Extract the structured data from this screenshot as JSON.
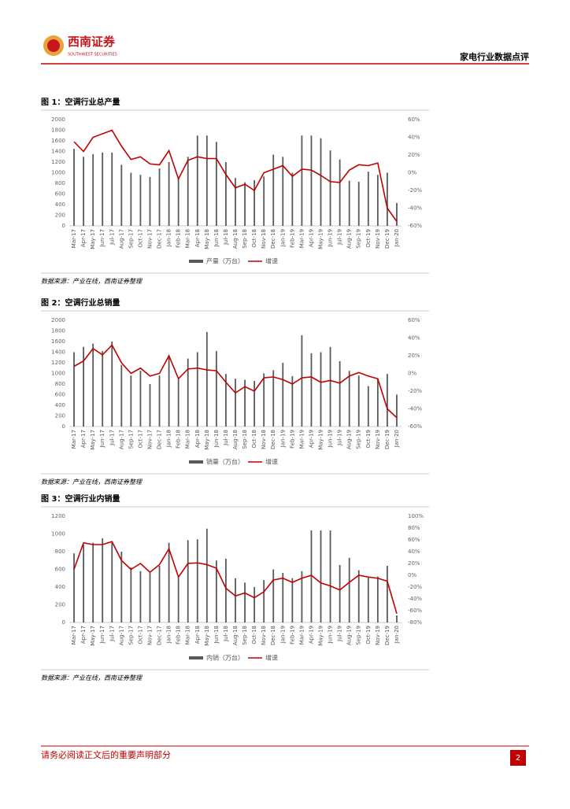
{
  "header": {
    "company": "西南证券",
    "company_en": "SOUTHWEST SECURITIES",
    "report_type": "家电行业数据点评"
  },
  "chart_data": [
    {
      "type": "combo",
      "title": "图 1：空调行业总产量",
      "categories": [
        "Mar-17",
        "Apr-17",
        "May-17",
        "Jun-17",
        "Jul-17",
        "Aug-17",
        "Sep-17",
        "Oct-17",
        "Nov-17",
        "Dec-17",
        "Jan-18",
        "Feb-18",
        "Mar-18",
        "Apr-18",
        "May-18",
        "Jun-18",
        "Jul-18",
        "Aug-18",
        "Sep-18",
        "Oct-18",
        "Nov-18",
        "Dec-18",
        "Jan-19",
        "Feb-19",
        "Mar-19",
        "Apr-19",
        "May-19",
        "Jun-19",
        "Jul-19",
        "Aug-19",
        "Sep-19",
        "Oct-19",
        "Nov-19",
        "Dec-19",
        "Jan-20"
      ],
      "series": [
        {
          "name": "产量（万台）",
          "type": "bar",
          "color": "#595959",
          "values": [
            1450,
            1300,
            1350,
            1380,
            1380,
            1150,
            1000,
            960,
            920,
            1080,
            1200,
            900,
            1300,
            1700,
            1700,
            1580,
            1200,
            900,
            820,
            860,
            930,
            1340,
            1300,
            1000,
            1700,
            1700,
            1650,
            1420,
            1250,
            850,
            830,
            1020,
            960,
            1000,
            430
          ]
        },
        {
          "name": "增速",
          "type": "line",
          "axis": "y2",
          "color": "#c00000",
          "values": [
            35,
            24,
            40,
            44,
            48,
            30,
            15,
            18,
            10,
            9,
            25,
            -7,
            14,
            18,
            16,
            16,
            -2,
            -17,
            -13,
            -20,
            0,
            4,
            8,
            -4,
            4,
            3,
            -3,
            -10,
            -11,
            3,
            9,
            8,
            11,
            -40,
            -55
          ]
        }
      ],
      "ylim": [
        0,
        2000
      ],
      "yticks": [
        0,
        200,
        400,
        600,
        800,
        1000,
        1200,
        1400,
        1600,
        1800,
        2000
      ],
      "y2lim": [
        -60,
        60
      ],
      "y2ticks": [
        {
          "value": -60,
          "label": "-60%"
        },
        {
          "value": -40,
          "label": "-40%"
        },
        {
          "value": -20,
          "label": "-20%"
        },
        {
          "value": 0,
          "label": "0%"
        },
        {
          "value": 20,
          "label": "20%"
        },
        {
          "value": 40,
          "label": "40%"
        },
        {
          "value": 60,
          "label": "60%"
        }
      ],
      "legend": "bottom"
    },
    {
      "type": "combo",
      "title": "图 2：空调行业总销量",
      "categories": [
        "Mar-17",
        "Apr-17",
        "May-17",
        "Jun-17",
        "Jul-17",
        "Aug-17",
        "Sep-17",
        "Oct-17",
        "Nov-17",
        "Dec-17",
        "Jan-18",
        "Feb-18",
        "Mar-18",
        "Apr-18",
        "May-18",
        "Jun-18",
        "Jul-18",
        "Aug-18",
        "Sep-18",
        "Oct-18",
        "Nov-18",
        "Dec-18",
        "Jan-19",
        "Feb-19",
        "Mar-19",
        "Apr-19",
        "May-19",
        "Jun-19",
        "Jul-19",
        "Aug-19",
        "Sep-19",
        "Oct-19",
        "Nov-19",
        "Dec-19",
        "Jan-20"
      ],
      "series": [
        {
          "name": "销量（万台）",
          "type": "bar",
          "color": "#595959",
          "values": [
            1400,
            1500,
            1560,
            1420,
            1600,
            1160,
            960,
            1050,
            800,
            960,
            1300,
            900,
            1280,
            1400,
            1780,
            1420,
            990,
            900,
            880,
            860,
            1000,
            1060,
            1200,
            950,
            1720,
            1380,
            1400,
            1500,
            1230,
            1050,
            960,
            760,
            900,
            990,
            600
          ]
        },
        {
          "name": "增速",
          "type": "line",
          "axis": "y2",
          "color": "#c00000",
          "values": [
            8,
            14,
            28,
            21,
            32,
            12,
            0,
            6,
            -3,
            0,
            20,
            -6,
            5,
            6,
            4,
            3,
            -10,
            -22,
            -15,
            -20,
            -5,
            -4,
            -7,
            -12,
            -5,
            -4,
            -10,
            -8,
            -11,
            -3,
            1,
            -3,
            -6,
            -40,
            -50
          ]
        }
      ],
      "ylim": [
        0,
        2000
      ],
      "yticks": [
        0,
        200,
        400,
        600,
        800,
        1000,
        1200,
        1400,
        1600,
        1800,
        2000
      ],
      "y2lim": [
        -60,
        60
      ],
      "y2ticks": [
        {
          "value": -60,
          "label": "-60%"
        },
        {
          "value": -40,
          "label": "-40%"
        },
        {
          "value": -20,
          "label": "-20%"
        },
        {
          "value": 0,
          "label": "0%"
        },
        {
          "value": 20,
          "label": "20%"
        },
        {
          "value": 40,
          "label": "40%"
        },
        {
          "value": 60,
          "label": "60%"
        }
      ],
      "legend": "bottom"
    },
    {
      "type": "combo",
      "title": "图 3：空调行业内销量",
      "categories": [
        "Mar-17",
        "Apr-17",
        "May-17",
        "Jun-17",
        "Jul-17",
        "Aug-17",
        "Sep-17",
        "Oct-17",
        "Nov-17",
        "Dec-17",
        "Jan-18",
        "Feb-18",
        "Mar-18",
        "Apr-18",
        "May-18",
        "Jun-18",
        "Jul-18",
        "Aug-18",
        "Sep-18",
        "Oct-18",
        "Nov-18",
        "Dec-18",
        "Jan-19",
        "Feb-19",
        "Mar-19",
        "Apr-19",
        "May-19",
        "Jun-19",
        "Jul-19",
        "Aug-19",
        "Sep-19",
        "Oct-19",
        "Nov-19",
        "Dec-19",
        "Jan-20"
      ],
      "series": [
        {
          "name": "内销（万台）",
          "type": "bar",
          "color": "#595959",
          "values": [
            780,
            880,
            900,
            950,
            900,
            800,
            620,
            580,
            560,
            640,
            900,
            510,
            930,
            940,
            1060,
            700,
            720,
            500,
            450,
            400,
            480,
            600,
            560,
            500,
            580,
            1040,
            1040,
            1040,
            650,
            730,
            590,
            520,
            520,
            640,
            80
          ]
        },
        {
          "name": "增速",
          "type": "line",
          "axis": "y2",
          "color": "#c00000",
          "values": [
            10,
            55,
            52,
            52,
            57,
            25,
            10,
            20,
            5,
            18,
            45,
            -3,
            20,
            21,
            18,
            12,
            -22,
            -35,
            -30,
            -38,
            -28,
            -8,
            -5,
            -12,
            -5,
            0,
            -13,
            -18,
            -25,
            -12,
            0,
            -3,
            -5,
            -10,
            -65
          ]
        }
      ],
      "ylim": [
        0,
        1200
      ],
      "yticks": [
        0,
        200,
        400,
        600,
        800,
        1000,
        1200
      ],
      "y2lim": [
        -80,
        100
      ],
      "y2ticks": [
        {
          "value": -80,
          "label": "-80%"
        },
        {
          "value": -60,
          "label": "-60%"
        },
        {
          "value": -40,
          "label": "-40%"
        },
        {
          "value": -20,
          "label": "-20%"
        },
        {
          "value": 0,
          "label": "0%"
        },
        {
          "value": 20,
          "label": "20%"
        },
        {
          "value": 40,
          "label": "40%"
        },
        {
          "value": 60,
          "label": "60%"
        },
        {
          "value": 80,
          "label": "80%"
        },
        {
          "value": 100,
          "label": "100%"
        }
      ],
      "legend": "bottom"
    }
  ],
  "sources": [
    "数据来源：产业在线，西南证券整理",
    "数据来源：产业在线，西南证券整理",
    "数据来源：产业在线，西南证券整理"
  ],
  "footer": {
    "disclaimer": "请务必阅读正文后的重要声明部分",
    "page": 2
  }
}
